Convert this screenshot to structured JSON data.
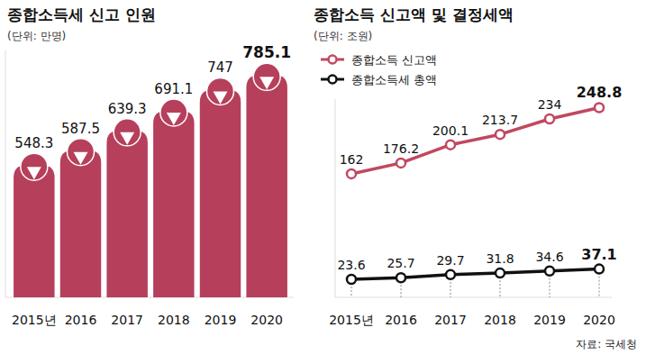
{
  "chart_data": [
    {
      "type": "bar",
      "title": "종합소득세 신고 인원",
      "subtitle": "(단위: 만명)",
      "categories": [
        "2015년",
        "2016",
        "2017",
        "2018",
        "2019",
        "2020"
      ],
      "values": [
        548.3,
        587.5,
        639.3,
        691.1,
        747,
        785.1
      ],
      "color": "#b63f5c",
      "ylim": [
        200,
        850
      ],
      "data_labels": true,
      "tick_labels": "x"
    },
    {
      "type": "line",
      "title": "종합소득 신고액 및 결정세액",
      "subtitle": "(단위: 조원)",
      "categories": [
        "2015년",
        "2016",
        "2017",
        "2018",
        "2019",
        "2020"
      ],
      "series": [
        {
          "name": "종합소득 신고액",
          "color": "#c0485f",
          "marker": "circle",
          "values": [
            162,
            176.2,
            200.1,
            213.7,
            234,
            248.8
          ]
        },
        {
          "name": "종합소득세 총액",
          "color": "#111111",
          "marker": "circle",
          "values": [
            23.6,
            25.7,
            29.7,
            31.8,
            34.6,
            37.1
          ]
        }
      ],
      "ylim": [
        0,
        260
      ],
      "data_labels": true,
      "tick_labels": "x",
      "legend": "upper left",
      "source": "자료: 국세청"
    }
  ]
}
